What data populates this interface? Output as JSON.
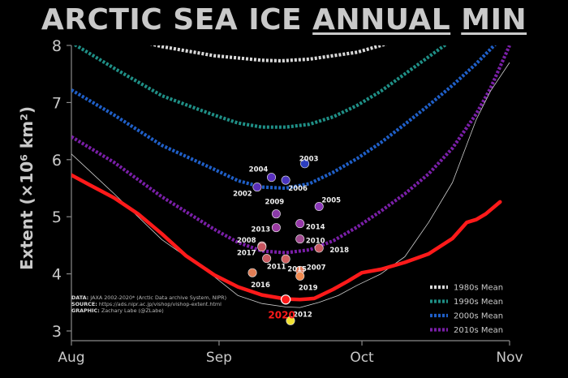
{
  "title": {
    "part1": "ARCTIC SEA ICE",
    "part2": "ANNUAL",
    "part3": "MIN"
  },
  "credits": {
    "data_label": "DATA:",
    "data_text": "JAXA 2002-2020* (Arctic Data archive System, NIPR)",
    "source_label": "SOURCE:",
    "source_text": "https://ads.nipr.ac.jp/vishop/vishop-extent.html",
    "graphic_label": "GRAPHIC:",
    "graphic_text": "Zachary Labe (@ZLabe)"
  },
  "colors": {
    "background": "#000000",
    "current_year": "#ff1a1a",
    "mean_1980s": "#d9d9d9",
    "mean_1990s": "#1f8f86",
    "mean_2000s": "#1f5fc8",
    "mean_2010s": "#7a1fa8",
    "envelope": "#cfcfcf"
  },
  "chart_data": {
    "type": "line",
    "title": "ARCTIC SEA ICE ANNUAL MIN",
    "xlabel": "",
    "ylabel": "Extent (×10⁶ km²)",
    "ylim": [
      3,
      8
    ],
    "xlim": [
      "Aug 1",
      "Nov 1"
    ],
    "x_ticks": [
      "Aug",
      "Sep",
      "Oct",
      "Nov"
    ],
    "y_ticks": [
      3,
      4,
      5,
      6,
      7,
      8
    ],
    "legend_position": "bottom-right",
    "series": [
      {
        "name": "1980s Mean",
        "style": "dashed",
        "color_key": "mean_1980s",
        "points": [
          [
            "Aug 10",
            8.18
          ],
          [
            "Aug 20",
            7.98
          ],
          [
            "Aug 31",
            7.82
          ],
          [
            "Sep 10",
            7.74
          ],
          [
            "Sep 14",
            7.73
          ],
          [
            "Sep 20",
            7.76
          ],
          [
            "Sep 30",
            7.88
          ],
          [
            "Oct 10",
            8.12
          ],
          [
            "Oct 14",
            8.22
          ]
        ]
      },
      {
        "name": "1990s Mean",
        "style": "dashed",
        "color_key": "mean_1990s",
        "points": [
          [
            "Aug 1",
            8.05
          ],
          [
            "Aug 10",
            7.6
          ],
          [
            "Aug 20",
            7.12
          ],
          [
            "Aug 27",
            6.9
          ],
          [
            "Aug 31",
            6.78
          ],
          [
            "Sep 5",
            6.64
          ],
          [
            "Sep 10",
            6.57
          ],
          [
            "Sep 15",
            6.57
          ],
          [
            "Sep 20",
            6.62
          ],
          [
            "Sep 25",
            6.75
          ],
          [
            "Sep 30",
            6.95
          ],
          [
            "Oct 5",
            7.2
          ],
          [
            "Oct 10",
            7.5
          ],
          [
            "Oct 15",
            7.8
          ],
          [
            "Oct 20",
            8.1
          ]
        ]
      },
      {
        "name": "2000s Mean",
        "style": "dashed",
        "color_key": "mean_2000s",
        "points": [
          [
            "Aug 1",
            7.22
          ],
          [
            "Aug 10",
            6.78
          ],
          [
            "Aug 20",
            6.25
          ],
          [
            "Aug 31",
            5.83
          ],
          [
            "Sep 5",
            5.63
          ],
          [
            "Sep 10",
            5.52
          ],
          [
            "Sep 15",
            5.5
          ],
          [
            "Sep 20",
            5.58
          ],
          [
            "Sep 25",
            5.78
          ],
          [
            "Sep 30",
            6.02
          ],
          [
            "Oct 5",
            6.3
          ],
          [
            "Oct 10",
            6.62
          ],
          [
            "Oct 15",
            6.95
          ],
          [
            "Oct 20",
            7.3
          ],
          [
            "Oct 25",
            7.68
          ],
          [
            "Oct 29",
            8.02
          ]
        ]
      },
      {
        "name": "2010s Mean",
        "style": "dashed",
        "color_key": "mean_2010s",
        "points": [
          [
            "Aug 1",
            6.4
          ],
          [
            "Aug 10",
            5.95
          ],
          [
            "Aug 20",
            5.35
          ],
          [
            "Aug 31",
            4.78
          ],
          [
            "Sep 5",
            4.55
          ],
          [
            "Sep 10",
            4.4
          ],
          [
            "Sep 15",
            4.37
          ],
          [
            "Sep 20",
            4.42
          ],
          [
            "Sep 25",
            4.58
          ],
          [
            "Sep 30",
            4.82
          ],
          [
            "Oct 5",
            5.1
          ],
          [
            "Oct 10",
            5.4
          ],
          [
            "Oct 15",
            5.75
          ],
          [
            "Oct 20",
            6.2
          ],
          [
            "Oct 25",
            6.8
          ],
          [
            "Oct 28",
            7.25
          ],
          [
            "Nov 1",
            8.0
          ]
        ]
      },
      {
        "name": "",
        "style": "thin",
        "color_key": "envelope",
        "points": [
          [
            "Aug 1",
            6.1
          ],
          [
            "Aug 10",
            5.4
          ],
          [
            "Aug 20",
            4.6
          ],
          [
            "Aug 31",
            3.95
          ],
          [
            "Sep 5",
            3.62
          ],
          [
            "Sep 10",
            3.48
          ],
          [
            "Sep 15",
            3.42
          ],
          [
            "Sep 18",
            3.41
          ],
          [
            "Sep 22",
            3.5
          ],
          [
            "Sep 26",
            3.62
          ],
          [
            "Sep 30",
            3.8
          ],
          [
            "Oct 5",
            4.0
          ],
          [
            "Oct 10",
            4.3
          ],
          [
            "Oct 15",
            4.9
          ],
          [
            "Oct 20",
            5.6
          ],
          [
            "Oct 25",
            6.7
          ],
          [
            "Oct 28",
            7.2
          ],
          [
            "Nov 1",
            7.7
          ]
        ]
      },
      {
        "name": "",
        "style": "solid",
        "color_key": "current_year",
        "points": [
          [
            "Aug 1",
            5.73
          ],
          [
            "Aug 5",
            5.55
          ],
          [
            "Aug 10",
            5.33
          ],
          [
            "Aug 15",
            5.05
          ],
          [
            "Aug 20",
            4.7
          ],
          [
            "Aug 25",
            4.32
          ],
          [
            "Aug 31",
            3.98
          ],
          [
            "Sep 5",
            3.77
          ],
          [
            "Sep 10",
            3.63
          ],
          [
            "Sep 15",
            3.56
          ],
          [
            "Sep 18",
            3.55
          ],
          [
            "Sep 21",
            3.57
          ],
          [
            "Sep 25",
            3.73
          ],
          [
            "Sep 28",
            3.87
          ],
          [
            "Oct 1",
            4.02
          ],
          [
            "Oct 5",
            4.08
          ],
          [
            "Oct 10",
            4.2
          ],
          [
            "Oct 15",
            4.35
          ],
          [
            "Oct 20",
            4.62
          ],
          [
            "Oct 23",
            4.9
          ],
          [
            "Oct 25",
            4.95
          ],
          [
            "Oct 27",
            5.05
          ],
          [
            "Oct 30",
            5.26
          ]
        ]
      }
    ],
    "annual_minima": [
      {
        "year": "2002",
        "date": "Sep 9",
        "extent": 5.52,
        "color": "#5a2fb8"
      },
      {
        "year": "2003",
        "date": "Sep 19",
        "extent": 5.93,
        "color": "#2b3ec0"
      },
      {
        "year": "2004",
        "date": "Sep 12",
        "extent": 5.69,
        "color": "#5a30c0"
      },
      {
        "year": "2005",
        "date": "Sep 22",
        "extent": 5.18,
        "color": "#8a38b8"
      },
      {
        "year": "2006",
        "date": "Sep 15",
        "extent": 5.64,
        "color": "#4a35c0"
      },
      {
        "year": "2007",
        "date": "Sep 18",
        "extent": 4.06,
        "color": "#e07555"
      },
      {
        "year": "2008",
        "date": "Sep 10",
        "extent": 4.49,
        "color": "#c0505a"
      },
      {
        "year": "2009",
        "date": "Sep 13",
        "extent": 5.05,
        "color": "#8a3aa8"
      },
      {
        "year": "2010",
        "date": "Sep 18",
        "extent": 4.61,
        "color": "#a04a90"
      },
      {
        "year": "2011",
        "date": "Sep 11",
        "extent": 4.27,
        "color": "#c85a60"
      },
      {
        "year": "2012",
        "date": "Sep 16",
        "extent": 3.18,
        "color": "#f0e030"
      },
      {
        "year": "2013",
        "date": "Sep 13",
        "extent": 4.81,
        "color": "#9a3aa0"
      },
      {
        "year": "2014",
        "date": "Sep 18",
        "extent": 4.88,
        "color": "#9538a8"
      },
      {
        "year": "2015",
        "date": "Sep 15",
        "extent": 4.26,
        "color": "#d06060"
      },
      {
        "year": "2016",
        "date": "Sep 8",
        "extent": 4.02,
        "color": "#e07d55"
      },
      {
        "year": "2017",
        "date": "Sep 10",
        "extent": 4.47,
        "color": "#c95560"
      },
      {
        "year": "2018",
        "date": "Sep 22",
        "extent": 4.45,
        "color": "#c85a62"
      },
      {
        "year": "2019",
        "date": "Sep 18",
        "extent": 3.96,
        "color": "#f08a50"
      },
      {
        "year": "2020",
        "date": "Sep 15",
        "extent": 3.55,
        "color": "#ff1a1a",
        "highlight": true
      }
    ]
  }
}
